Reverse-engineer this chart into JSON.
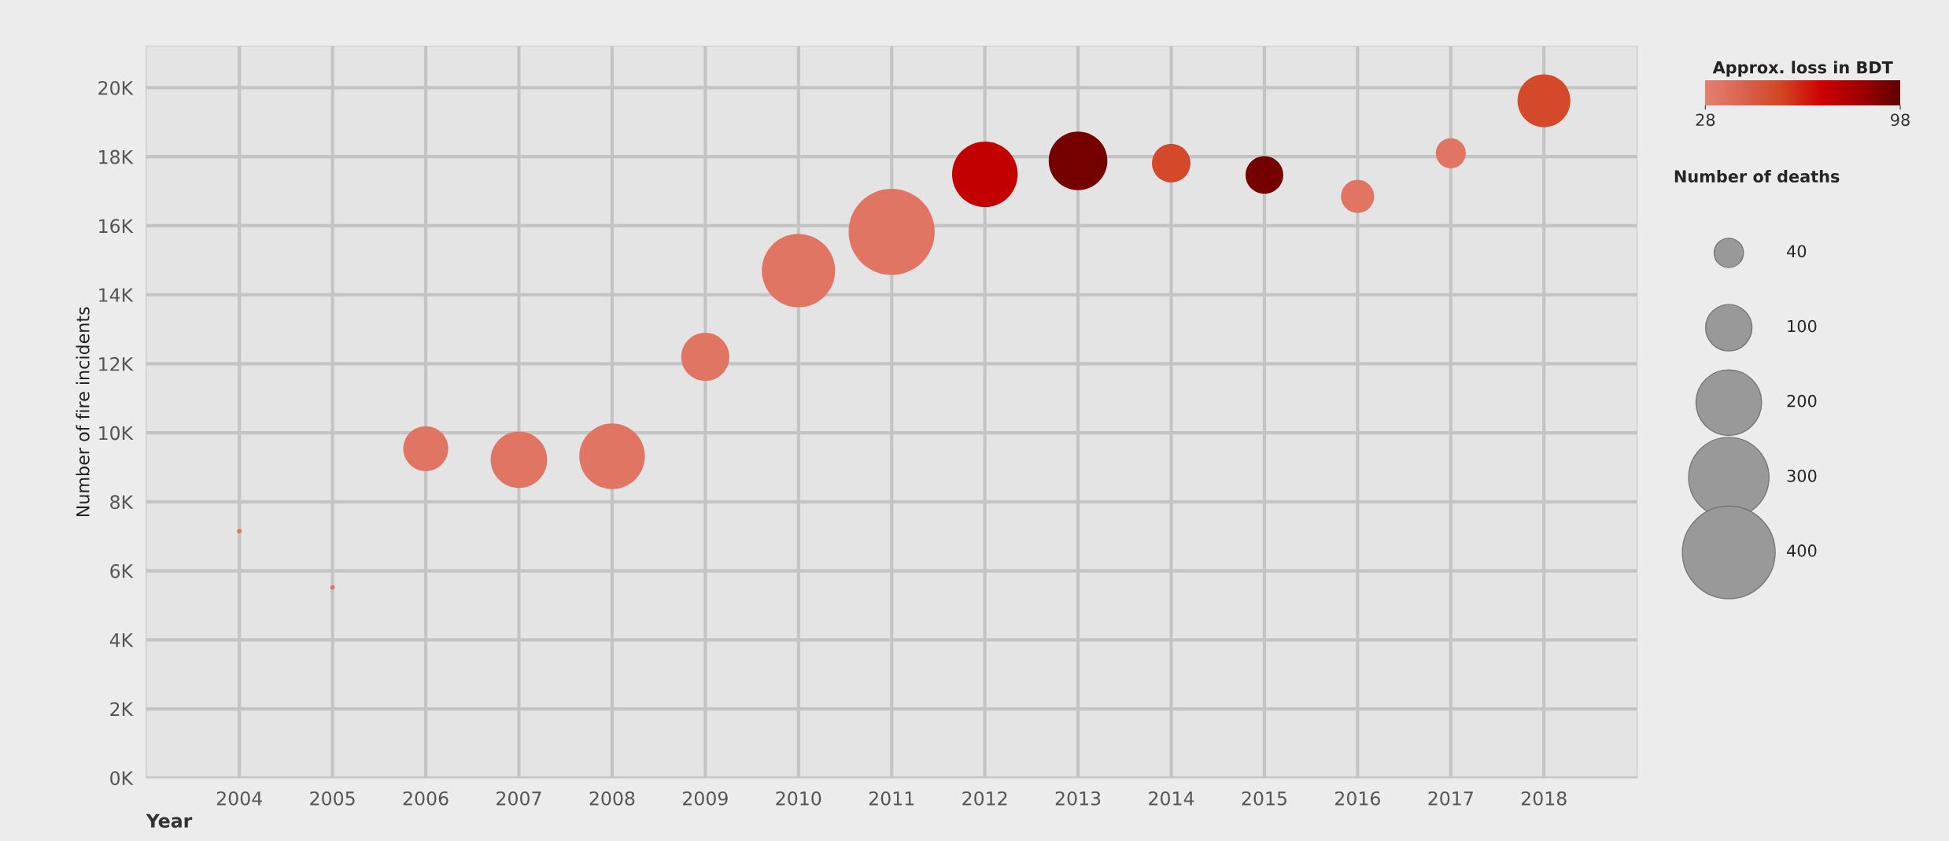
{
  "chart_data": {
    "type": "bubble",
    "xlabel": "Year",
    "ylabel": "Number of fire incidents",
    "clabel": "Approx. loss in BDT",
    "legend_title": "Number of deaths",
    "categories": [
      "2004",
      "2005",
      "2006",
      "2007",
      "2008",
      "2009",
      "2010",
      "2011",
      "2012",
      "2013",
      "2014",
      "2015",
      "2016",
      "2017",
      "2018"
    ],
    "values": [
      7150,
      5520,
      9540,
      9220,
      9320,
      12200,
      14700,
      15820,
      17490,
      17880,
      17810,
      17470,
      16850,
      18100,
      19620
    ],
    "sizes": [
      1,
      1,
      94,
      149,
      200,
      108,
      250,
      345,
      200,
      160,
      69,
      66,
      51,
      42,
      130
    ],
    "cvalues": [
      33,
      33,
      33,
      33,
      33,
      33,
      33,
      33,
      73,
      93,
      53,
      93,
      33,
      33,
      53
    ],
    "size_legend": [
      40,
      100,
      200,
      300,
      400
    ],
    "clim": [
      28,
      98
    ],
    "cticks": [
      28,
      98
    ],
    "ylim": [
      0,
      21200
    ],
    "yticks": [
      {
        "value": 0,
        "label": "0K"
      },
      {
        "value": 2000,
        "label": "2K"
      },
      {
        "value": 4000,
        "label": "4K"
      },
      {
        "value": 6000,
        "label": "6K"
      },
      {
        "value": 8000,
        "label": "8K"
      },
      {
        "value": 10000,
        "label": "10K"
      },
      {
        "value": 12000,
        "label": "12K"
      },
      {
        "value": 14000,
        "label": "14K"
      },
      {
        "value": 16000,
        "label": "16K"
      },
      {
        "value": 18000,
        "label": "18K"
      },
      {
        "value": 20000,
        "label": "20K"
      }
    ],
    "grid": true,
    "marker": "circle"
  }
}
